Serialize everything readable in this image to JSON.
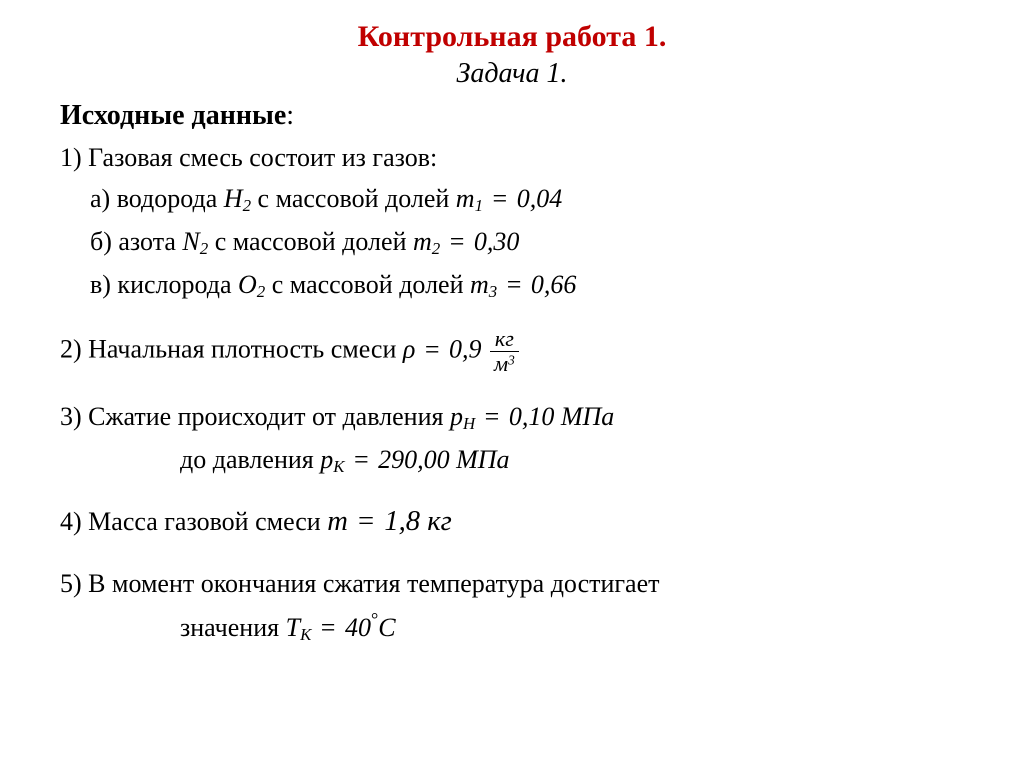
{
  "colors": {
    "title_main": "#c00000",
    "text": "#000000",
    "background": "#ffffff"
  },
  "fonts": {
    "family": "Times New Roman",
    "title_main_size": 30,
    "title_sub_size": 28,
    "body_size": 26
  },
  "title": {
    "main": "Контрольная работа 1.",
    "sub": "Задача 1."
  },
  "header": "Исходные данные",
  "colon": ":",
  "item1": {
    "prefix": "1)  Газовая смесь состоит из газов:",
    "a": {
      "label": "а) водорода ",
      "sym": "H",
      "sym_sub": "2",
      "mid": "  с массовой долей  ",
      "var": "m",
      "var_sub": "1",
      "val": "0,04"
    },
    "b": {
      "label": "б) азота   ",
      "sym": "N",
      "sym_sub": "2",
      "mid": "  с массовой долей  ",
      "var": "m",
      "var_sub": "2",
      "val": "0,30"
    },
    "c": {
      "label": "в) кислорода ",
      "sym": "O",
      "sym_sub": "2",
      "mid": "  с массовой долей   ",
      "var": "m",
      "var_sub": "3",
      "val": "0,66"
    }
  },
  "item2": {
    "prefix": "2)  Начальная плотность смеси  ",
    "var": "ρ",
    "val": "0,9",
    "unit_num": "кг",
    "unit_den_base": "м",
    "unit_den_exp": "3"
  },
  "item3": {
    "line1_prefix": "3)  Сжатие происходит от давления   ",
    "pH_var": "p",
    "pH_sub": "Н",
    "pH_val": "0,10 МПа",
    "line2_prefix": "до давления ",
    "pK_var": "p",
    "pK_sub": "К",
    "pK_val": "290,00 МПа"
  },
  "item4": {
    "prefix": "4)  Масса газовой смеси ",
    "var": "m",
    "val": "1,8 кг"
  },
  "item5": {
    "line1": "5)   В момент окончания сжатия температура достигает",
    "line2_prefix": "значения ",
    "var": "T",
    "var_sub": "К",
    "val_num": "40",
    "val_unit": "C"
  }
}
